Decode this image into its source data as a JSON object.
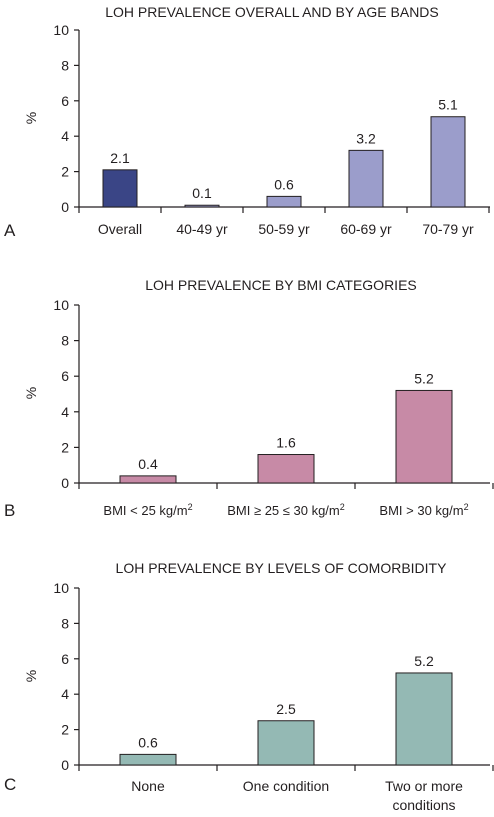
{
  "chart_data": [
    {
      "type": "bar",
      "panel_letter": "A",
      "title": "LOH PREVALENCE OVERALL AND BY AGE BANDS",
      "ylabel": "%",
      "ylim": [
        0,
        10
      ],
      "yticks": [
        0,
        2,
        4,
        6,
        8,
        10
      ],
      "grid": false,
      "legend": "none",
      "categories": [
        [
          "Overall"
        ],
        [
          "40-49 yr"
        ],
        [
          "50-59 yr"
        ],
        [
          "60-69 yr"
        ],
        [
          "70-79 yr"
        ]
      ],
      "values": [
        2.1,
        0.1,
        0.6,
        3.2,
        5.1
      ],
      "value_labels": [
        "2.1",
        "0.1",
        "0.6",
        "3.2",
        "5.1"
      ],
      "colors": [
        "#3a4586",
        "#9b9dcb",
        "#9b9dcb",
        "#9b9dcb",
        "#9b9dcb"
      ]
    },
    {
      "type": "bar",
      "panel_letter": "B",
      "title": "LOH PREVALENCE BY BMI CATEGORIES",
      "ylabel": "%",
      "ylim": [
        0,
        10
      ],
      "yticks": [
        0,
        2,
        4,
        6,
        8,
        10
      ],
      "grid": false,
      "legend": "none",
      "categories": [
        [
          {
            "t": "BMI < 25 kg/m"
          },
          {
            "t": "2",
            "sup": true
          }
        ],
        [
          {
            "t": "BMI ≥ 25 ≤ 30 kg/m"
          },
          {
            "t": "2",
            "sup": true
          }
        ],
        [
          {
            "t": "BMI > 30 kg/m"
          },
          {
            "t": "2",
            "sup": true
          }
        ]
      ],
      "values": [
        0.4,
        1.6,
        5.2
      ],
      "value_labels": [
        "0.4",
        "1.6",
        "5.2"
      ],
      "colors": [
        "#c78aa6",
        "#c78aa6",
        "#c78aa6"
      ]
    },
    {
      "type": "bar",
      "panel_letter": "C",
      "title": "LOH PREVALENCE BY LEVELS OF COMORBIDITY",
      "ylabel": "%",
      "ylim": [
        0,
        10
      ],
      "yticks": [
        0,
        2,
        4,
        6,
        8,
        10
      ],
      "grid": false,
      "legend": "none",
      "categories": [
        [
          "None"
        ],
        [
          "One condition"
        ],
        [
          "Two or more",
          "conditions"
        ]
      ],
      "values": [
        0.6,
        2.5,
        5.2
      ],
      "value_labels": [
        "0.6",
        "2.5",
        "5.2"
      ],
      "colors": [
        "#94b9b4",
        "#94b9b4",
        "#94b9b4"
      ]
    }
  ]
}
